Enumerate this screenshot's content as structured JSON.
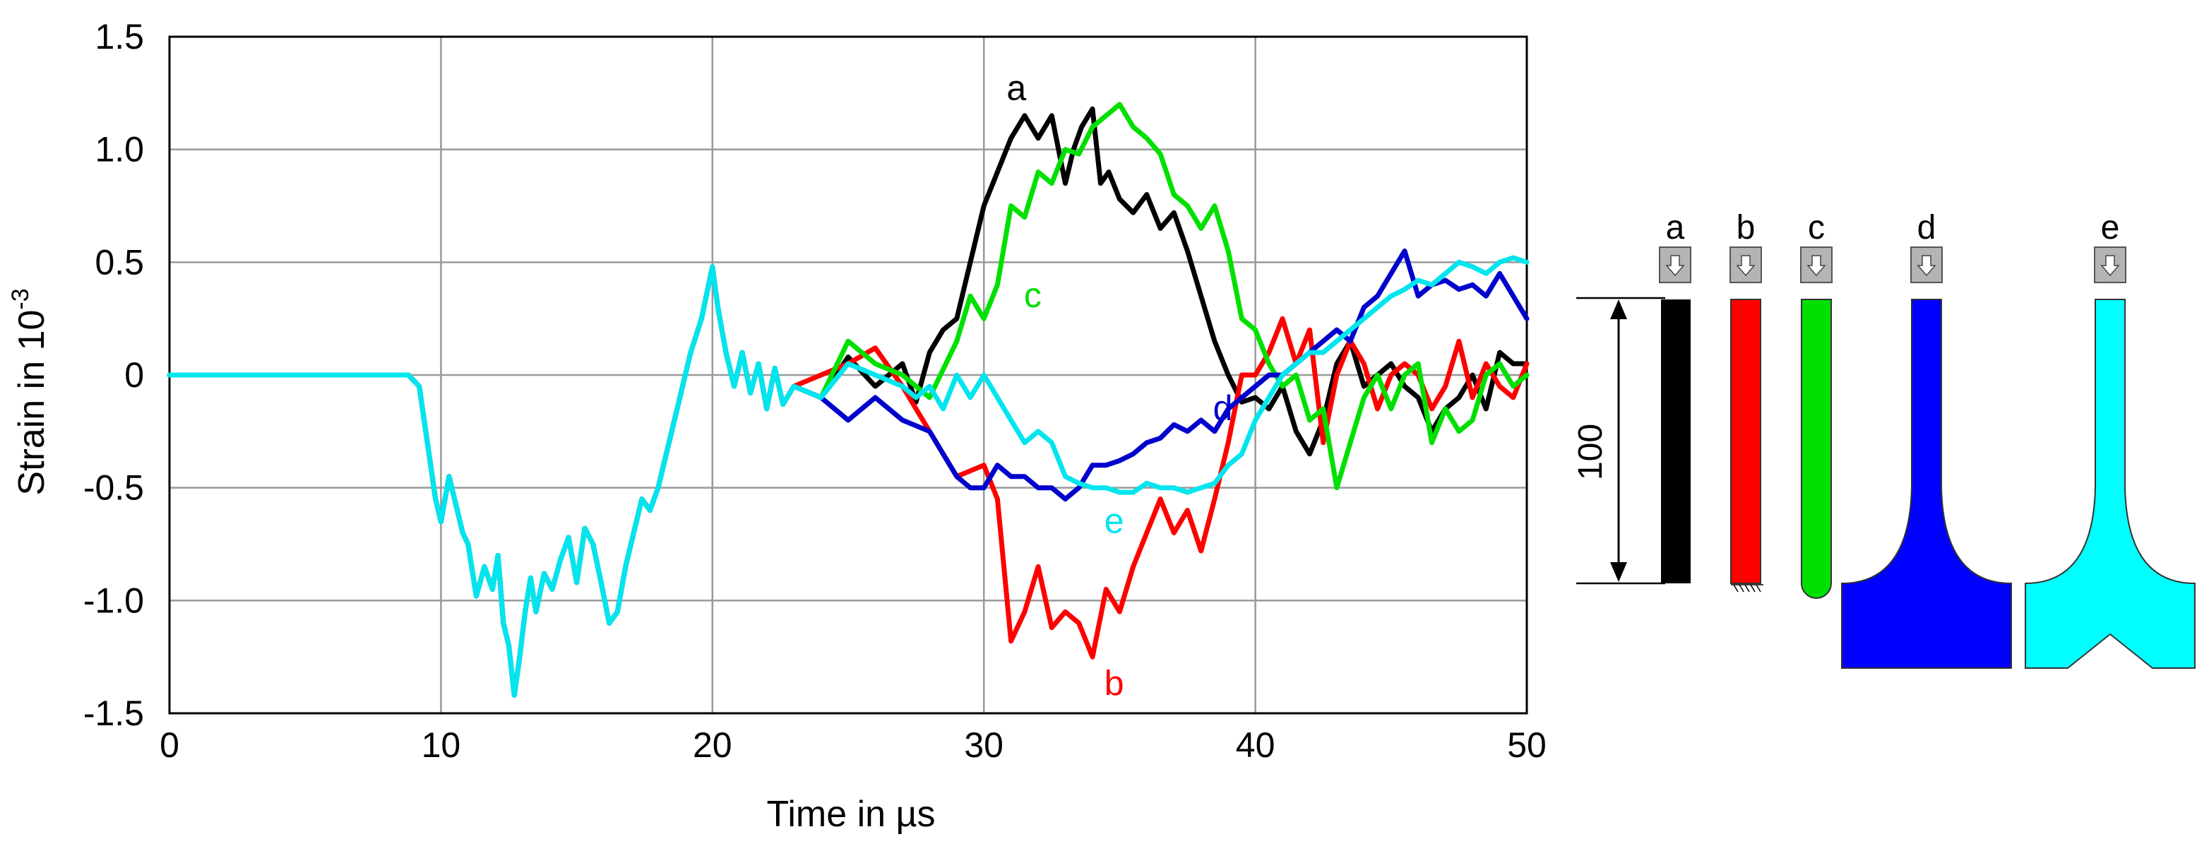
{
  "chart_data": {
    "type": "line",
    "xlabel": "Time in µs",
    "ylabel_main": "Strain in 10",
    "ylabel_exp": "-3",
    "xlim": [
      0,
      50
    ],
    "ylim": [
      -1.5,
      1.5
    ],
    "xticks": [
      0,
      10,
      20,
      30,
      40,
      50
    ],
    "xtick_labels": [
      "0",
      "10",
      "20",
      "30",
      "40",
      "50"
    ],
    "yticks": [
      -1.5,
      -1.0,
      -0.5,
      0,
      0.5,
      1.0,
      1.5
    ],
    "ytick_labels": [
      "-1.5",
      "-1.0",
      "-0.5",
      "0",
      "0.5",
      "1.0",
      "1.5"
    ],
    "grid": true,
    "common_x": [
      0,
      8.8,
      9.2,
      9.5,
      9.8,
      10.0,
      10.3,
      10.6,
      10.8,
      11.0,
      11.3,
      11.6,
      11.9,
      12.1,
      12.3,
      12.5,
      12.7,
      12.9,
      13.1,
      13.3,
      13.5,
      13.8,
      14.1,
      14.4,
      14.7,
      15.0,
      15.3,
      15.6,
      15.9,
      16.2,
      16.5,
      16.8,
      17.1,
      17.4,
      17.7,
      18.0,
      18.4,
      18.8,
      19.2,
      19.6,
      20.0,
      20.2,
      20.5,
      20.8,
      21.1,
      21.4,
      21.7,
      22.0,
      22.3,
      22.6,
      23.0
    ],
    "common_y": [
      0,
      0,
      -0.05,
      -0.3,
      -0.55,
      -0.65,
      -0.45,
      -0.6,
      -0.7,
      -0.75,
      -0.98,
      -0.85,
      -0.95,
      -0.8,
      -1.1,
      -1.2,
      -1.42,
      -1.25,
      -1.05,
      -0.9,
      -1.05,
      -0.88,
      -0.95,
      -0.82,
      -0.72,
      -0.92,
      -0.68,
      -0.75,
      -0.92,
      -1.1,
      -1.05,
      -0.85,
      -0.7,
      -0.55,
      -0.6,
      -0.5,
      -0.3,
      -0.1,
      0.1,
      0.25,
      0.48,
      0.3,
      0.1,
      -0.05,
      0.1,
      -0.08,
      0.05,
      -0.15,
      0.03,
      -0.13,
      -0.05
    ],
    "series": [
      {
        "label": "a",
        "color": "#000000",
        "x": [
          23,
          24,
          25,
          26,
          27,
          27.5,
          28,
          28.5,
          29,
          29.5,
          30,
          30.5,
          31,
          31.5,
          32,
          32.5,
          33,
          33.3,
          33.6,
          34,
          34.3,
          34.6,
          35,
          35.5,
          36,
          36.5,
          37,
          37.5,
          38,
          38.5,
          39,
          39.5,
          40,
          40.5,
          41,
          41.5,
          42,
          42.5,
          43,
          43.5,
          44,
          44.5,
          45,
          45.5,
          46,
          46.5,
          47,
          47.5,
          48,
          48.5,
          49,
          49.5,
          50
        ],
        "y": [
          -0.05,
          -0.1,
          0.08,
          -0.05,
          0.05,
          -0.12,
          0.1,
          0.2,
          0.25,
          0.5,
          0.75,
          0.9,
          1.05,
          1.15,
          1.05,
          1.15,
          0.85,
          1.0,
          1.1,
          1.18,
          0.85,
          0.9,
          0.78,
          0.72,
          0.8,
          0.65,
          0.72,
          0.55,
          0.35,
          0.15,
          0.0,
          -0.12,
          -0.1,
          -0.15,
          -0.05,
          -0.25,
          -0.35,
          -0.2,
          0.05,
          0.15,
          -0.05,
          0.0,
          0.05,
          -0.05,
          -0.1,
          -0.25,
          -0.15,
          -0.1,
          0.0,
          -0.15,
          0.1,
          0.05,
          0.05
        ]
      },
      {
        "label": "b",
        "color": "#ff0000",
        "x": [
          23,
          24,
          25,
          26,
          27,
          28,
          29,
          30,
          30.5,
          31,
          31.5,
          32,
          32.5,
          33,
          33.5,
          34,
          34.5,
          35,
          35.5,
          36,
          36.5,
          37,
          37.5,
          38,
          38.5,
          39,
          39.5,
          40,
          40.5,
          41,
          41.5,
          42,
          42.5,
          43,
          43.5,
          44,
          44.5,
          45,
          45.5,
          46,
          46.5,
          47,
          47.5,
          48,
          48.5,
          49,
          49.5,
          50
        ],
        "y": [
          -0.05,
          0.0,
          0.05,
          0.12,
          -0.05,
          -0.25,
          -0.45,
          -0.4,
          -0.55,
          -1.18,
          -1.05,
          -0.85,
          -1.12,
          -1.05,
          -1.1,
          -1.25,
          -0.95,
          -1.05,
          -0.85,
          -0.7,
          -0.55,
          -0.7,
          -0.6,
          -0.78,
          -0.55,
          -0.3,
          0.0,
          0.0,
          0.1,
          0.25,
          0.05,
          0.2,
          -0.3,
          0.0,
          0.15,
          0.05,
          -0.15,
          0.0,
          0.05,
          0.0,
          -0.15,
          -0.05,
          0.15,
          -0.1,
          0.05,
          -0.05,
          -0.1,
          0.05
        ]
      },
      {
        "label": "c",
        "color": "#00e000",
        "x": [
          23,
          24,
          25,
          26,
          27,
          28,
          29,
          29.5,
          30,
          30.5,
          31,
          31.5,
          32,
          32.5,
          33,
          33.5,
          34,
          34.5,
          35,
          35.5,
          36,
          36.5,
          37,
          37.5,
          38,
          38.5,
          39,
          39.5,
          40,
          40.5,
          41,
          41.5,
          42,
          42.5,
          43,
          43.5,
          44,
          44.5,
          45,
          45.5,
          46,
          46.5,
          47,
          47.5,
          48,
          48.5,
          49,
          49.5,
          50
        ],
        "y": [
          -0.05,
          -0.1,
          0.15,
          0.05,
          0.0,
          -0.1,
          0.15,
          0.35,
          0.25,
          0.4,
          0.75,
          0.7,
          0.9,
          0.85,
          1.0,
          0.98,
          1.1,
          1.15,
          1.2,
          1.1,
          1.05,
          0.98,
          0.8,
          0.75,
          0.65,
          0.75,
          0.55,
          0.25,
          0.2,
          0.05,
          -0.05,
          0.0,
          -0.2,
          -0.15,
          -0.5,
          -0.3,
          -0.1,
          0.0,
          -0.15,
          0.0,
          0.05,
          -0.3,
          -0.15,
          -0.25,
          -0.2,
          0.0,
          0.05,
          -0.05,
          0.0
        ]
      },
      {
        "label": "d",
        "color": "#0000cc",
        "x": [
          21,
          22,
          23,
          24,
          25,
          26,
          27,
          28,
          28.5,
          29,
          29.5,
          30,
          30.5,
          31,
          31.5,
          32,
          32.5,
          33,
          33.5,
          34,
          34.5,
          35,
          35.5,
          36,
          36.5,
          37,
          37.5,
          38,
          38.5,
          39,
          39.5,
          40,
          40.5,
          41,
          41.5,
          42,
          42.5,
          43,
          43.5,
          44,
          44.5,
          45,
          45.5,
          46,
          46.5,
          47,
          47.5,
          48,
          48.5,
          49,
          49.5,
          50
        ],
        "y": [
          0.15,
          -0.1,
          -0.15,
          -0.1,
          -0.2,
          -0.1,
          -0.2,
          -0.25,
          -0.35,
          -0.45,
          -0.5,
          -0.5,
          -0.4,
          -0.45,
          -0.45,
          -0.5,
          -0.5,
          -0.55,
          -0.5,
          -0.4,
          -0.4,
          -0.38,
          -0.35,
          -0.3,
          -0.28,
          -0.22,
          -0.25,
          -0.2,
          -0.25,
          -0.15,
          -0.1,
          -0.05,
          0.0,
          0.0,
          0.05,
          0.1,
          0.15,
          0.2,
          0.15,
          0.3,
          0.35,
          0.45,
          0.55,
          0.35,
          0.4,
          0.42,
          0.38,
          0.4,
          0.35,
          0.45,
          0.35,
          0.25
        ]
      },
      {
        "label": "e",
        "color": "#00e5ee",
        "x": [
          23,
          24,
          25,
          26,
          27,
          27.5,
          28,
          28.5,
          29,
          29.5,
          30,
          30.5,
          31,
          31.5,
          32,
          32.5,
          33,
          33.5,
          34,
          34.5,
          35,
          35.5,
          36,
          36.5,
          37,
          37.5,
          38,
          38.5,
          39,
          39.5,
          40,
          40.5,
          41,
          41.5,
          42,
          42.5,
          43,
          43.5,
          44,
          44.5,
          45,
          45.5,
          46,
          46.5,
          47,
          47.5,
          48,
          48.5,
          49,
          49.5,
          50
        ],
        "y": [
          -0.05,
          -0.1,
          0.05,
          0.0,
          -0.05,
          -0.1,
          -0.05,
          -0.15,
          0.0,
          -0.1,
          0.0,
          -0.1,
          -0.2,
          -0.3,
          -0.25,
          -0.3,
          -0.45,
          -0.48,
          -0.5,
          -0.5,
          -0.52,
          -0.52,
          -0.48,
          -0.5,
          -0.5,
          -0.52,
          -0.5,
          -0.48,
          -0.4,
          -0.35,
          -0.2,
          -0.1,
          0.0,
          0.05,
          0.1,
          0.1,
          0.15,
          0.2,
          0.25,
          0.3,
          0.35,
          0.38,
          0.42,
          0.4,
          0.45,
          0.5,
          0.48,
          0.45,
          0.5,
          0.52,
          0.5
        ]
      }
    ],
    "curve_labels": [
      {
        "text": "a",
        "x": 31.2,
        "y": 1.22,
        "color": "#000000"
      },
      {
        "text": "c",
        "x": 31.8,
        "y": 0.3,
        "color": "#00e000"
      },
      {
        "text": "d",
        "x": 38.8,
        "y": -0.2,
        "color": "#0000cc"
      },
      {
        "text": "e",
        "x": 34.8,
        "y": -0.7,
        "color": "#00e5ee"
      },
      {
        "text": "b",
        "x": 34.8,
        "y": -1.42,
        "color": "#ff0000"
      }
    ]
  },
  "specimens": {
    "dimension_label": "100",
    "items": [
      {
        "label": "a",
        "color": "#000000",
        "shape": "bar"
      },
      {
        "label": "b",
        "color": "#ff0000",
        "shape": "bar-fixed"
      },
      {
        "label": "c",
        "color": "#00e000",
        "shape": "rounded"
      },
      {
        "label": "d",
        "color": "#0000ff",
        "shape": "flared"
      },
      {
        "label": "e",
        "color": "#00ffff",
        "shape": "flared-notched"
      }
    ],
    "load_icon": "down-arrow-icon"
  }
}
